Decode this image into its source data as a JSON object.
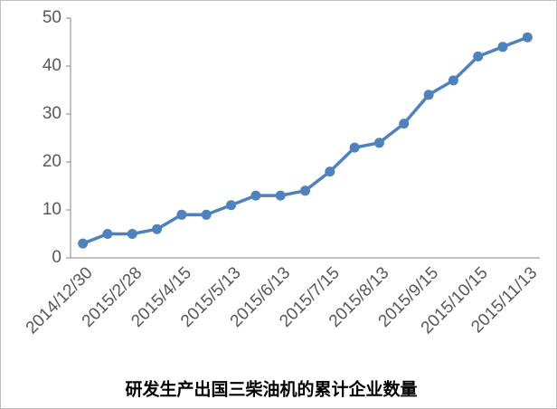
{
  "chart_data": {
    "type": "line",
    "title": "研发生产出国三柴油机的累计企业数量",
    "categories": [
      "2014/12/30",
      null,
      "2015/2/28",
      null,
      "2015/4/15",
      null,
      "2015/5/13",
      null,
      "2015/6/13",
      null,
      "2015/7/15",
      null,
      "2015/8/13",
      null,
      "2015/9/15",
      null,
      "2015/10/15",
      null,
      "2015/11/13"
    ],
    "values": [
      3,
      5,
      5,
      6,
      9,
      9,
      11,
      13,
      13,
      14,
      18,
      23,
      24,
      28,
      34,
      37,
      42,
      44,
      46
    ],
    "color": "#4f81bd",
    "ylim": [
      0,
      50
    ],
    "yticks": [
      0,
      10,
      20,
      30,
      40,
      50
    ],
    "grid": false
  }
}
